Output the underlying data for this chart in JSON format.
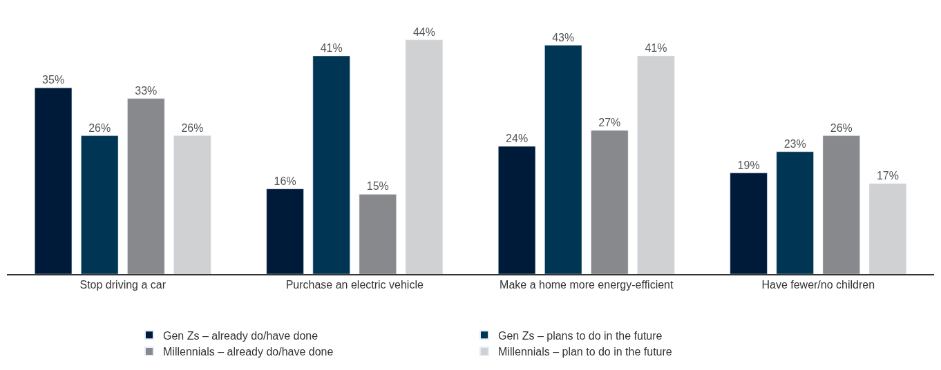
{
  "chart_data": {
    "type": "bar",
    "categories": [
      "Stop driving a car",
      "Purchase an electric vehicle",
      "Make a home more energy-efficient",
      "Have fewer/no children"
    ],
    "series": [
      {
        "name": "Gen Zs – already do/have done",
        "color": "#001b3a",
        "values": [
          35,
          16,
          24,
          19
        ],
        "value_labels": [
          "35%",
          "16%",
          "24%",
          "19%"
        ]
      },
      {
        "name": "Gen Zs – plans to do in the future",
        "color": "#003654",
        "values": [
          26,
          41,
          43,
          23
        ],
        "value_labels": [
          "26%",
          "41%",
          "43%",
          "23%"
        ]
      },
      {
        "name": "Millennials – already do/have done",
        "color": "#88898c",
        "values": [
          33,
          15,
          27,
          26
        ],
        "value_labels": [
          "33%",
          "15%",
          "27%",
          "26%"
        ]
      },
      {
        "name": "Millennials – plan to do in the future",
        "color": "#d0d1d3",
        "values": [
          26,
          44,
          41,
          17
        ],
        "value_labels": [
          "26%",
          "44%",
          "41%",
          "17%"
        ]
      }
    ],
    "legend": "bottom"
  }
}
